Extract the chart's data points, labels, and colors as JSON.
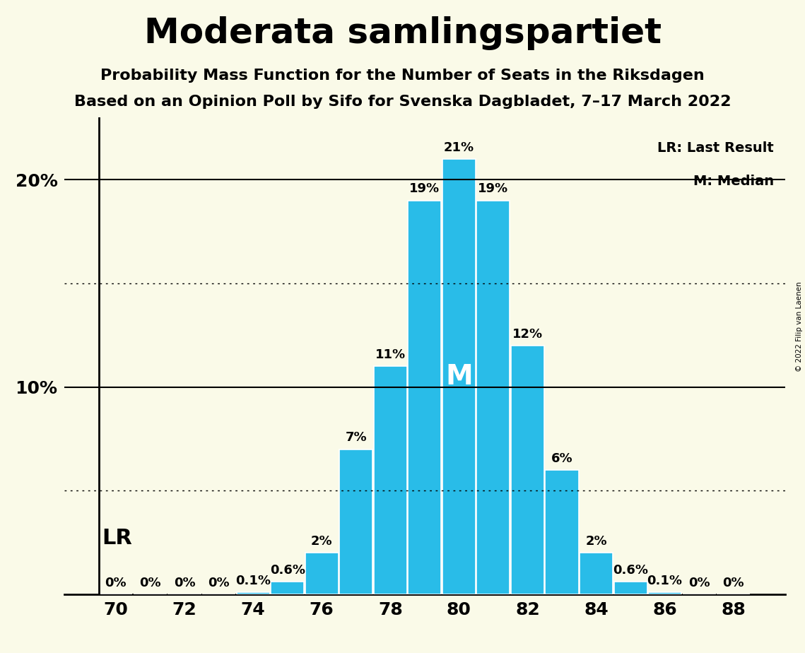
{
  "title": "Moderata samlingspartiet",
  "subtitle1": "Probability Mass Function for the Number of Seats in the Riksdagen",
  "subtitle2": "Based on an Opinion Poll by Sifo for Svenska Dagbladet, 7–17 March 2022",
  "copyright": "© 2022 Filip van Laenen",
  "seats": [
    70,
    71,
    72,
    73,
    74,
    75,
    76,
    77,
    78,
    79,
    80,
    81,
    82,
    83,
    84,
    85,
    86,
    87,
    88
  ],
  "probabilities": [
    0.0,
    0.0,
    0.0,
    0.0,
    0.1,
    0.6,
    2.0,
    7.0,
    11.0,
    19.0,
    21.0,
    19.0,
    12.0,
    6.0,
    2.0,
    0.6,
    0.1,
    0.0,
    0.0
  ],
  "bar_color": "#29bce8",
  "background_color": "#fafae8",
  "bar_labels": [
    "0%",
    "0%",
    "0%",
    "0%",
    "0.1%",
    "0.6%",
    "2%",
    "7%",
    "11%",
    "19%",
    "21%",
    "19%",
    "12%",
    "6%",
    "2%",
    "0.6%",
    "0.1%",
    "0%",
    "0%"
  ],
  "ylim": [
    0,
    23
  ],
  "solid_yticks": [
    10,
    20
  ],
  "dotted_yticks": [
    5,
    15
  ],
  "median_seat": 80,
  "lr_seat": 70,
  "lr_label": "LR",
  "median_label": "M",
  "legend_lr": "LR: Last Result",
  "legend_m": "M: Median",
  "xlabel_ticks": [
    70,
    72,
    74,
    76,
    78,
    80,
    82,
    84,
    86,
    88
  ],
  "title_fontsize": 36,
  "subtitle_fontsize": 16,
  "legend_fontsize": 14,
  "bar_label_fontsize": 13,
  "axis_tick_fontsize": 18,
  "lr_fontsize": 22,
  "median_fontsize": 28
}
